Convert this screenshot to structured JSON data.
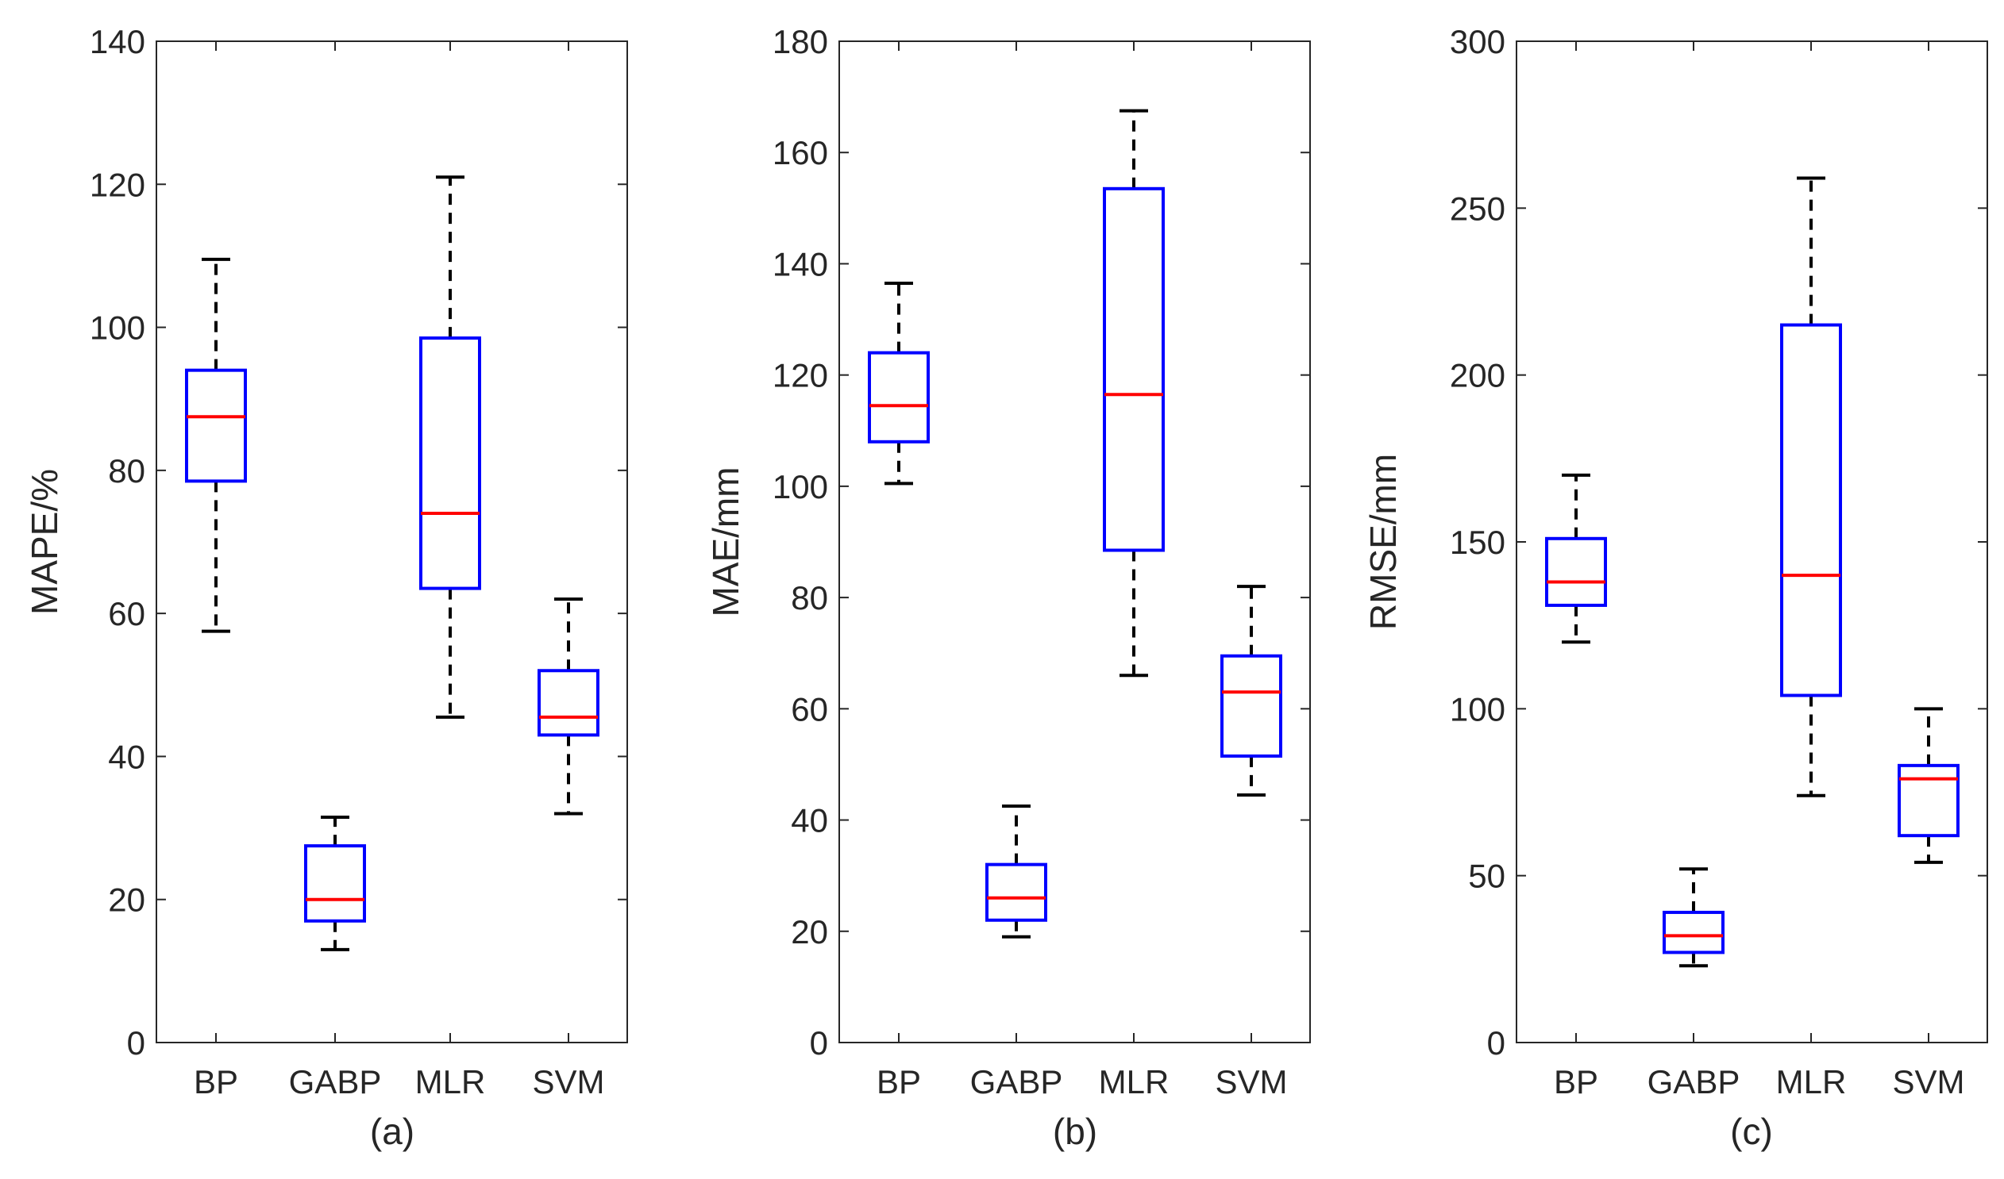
{
  "chart_data": [
    {
      "type": "boxplot",
      "panel_label": "(a)",
      "ylabel": "MAPE/%",
      "ylim": [
        0,
        140
      ],
      "yticks": [
        0,
        20,
        40,
        60,
        80,
        100,
        120,
        140
      ],
      "categories": [
        "BP",
        "GABP",
        "MLR",
        "SVM"
      ],
      "boxes": [
        {
          "name": "BP",
          "whisker_low": 57.5,
          "q1": 78.5,
          "median": 87.5,
          "q3": 94,
          "whisker_high": 109.5
        },
        {
          "name": "GABP",
          "whisker_low": 13,
          "q1": 17,
          "median": 20,
          "q3": 27.5,
          "whisker_high": 31.5
        },
        {
          "name": "MLR",
          "whisker_low": 45.5,
          "q1": 63.5,
          "median": 74,
          "q3": 98.5,
          "whisker_high": 121
        },
        {
          "name": "SVM",
          "whisker_low": 32,
          "q1": 43,
          "median": 45.5,
          "q3": 52,
          "whisker_high": 62
        }
      ]
    },
    {
      "type": "boxplot",
      "panel_label": "(b)",
      "ylabel": "MAE/mm",
      "ylim": [
        0,
        180
      ],
      "yticks": [
        0,
        20,
        40,
        60,
        80,
        100,
        120,
        140,
        160,
        180
      ],
      "categories": [
        "BP",
        "GABP",
        "MLR",
        "SVM"
      ],
      "boxes": [
        {
          "name": "BP",
          "whisker_low": 100.5,
          "q1": 108,
          "median": 114.5,
          "q3": 124,
          "whisker_high": 136.5
        },
        {
          "name": "GABP",
          "whisker_low": 19,
          "q1": 22,
          "median": 26,
          "q3": 32,
          "whisker_high": 42.5
        },
        {
          "name": "MLR",
          "whisker_low": 66,
          "q1": 88.5,
          "median": 116.5,
          "q3": 153.5,
          "whisker_high": 167.5
        },
        {
          "name": "SVM",
          "whisker_low": 44.5,
          "q1": 51.5,
          "median": 63,
          "q3": 69.5,
          "whisker_high": 82
        }
      ]
    },
    {
      "type": "boxplot",
      "panel_label": "(c)",
      "ylabel": "RMSE/mm",
      "ylim": [
        0,
        300
      ],
      "yticks": [
        0,
        50,
        100,
        150,
        200,
        250,
        300
      ],
      "categories": [
        "BP",
        "GABP",
        "MLR",
        "SVM"
      ],
      "boxes": [
        {
          "name": "BP",
          "whisker_low": 120,
          "q1": 131,
          "median": 138,
          "q3": 151,
          "whisker_high": 170
        },
        {
          "name": "GABP",
          "whisker_low": 23,
          "q1": 27,
          "median": 32,
          "q3": 39,
          "whisker_high": 52
        },
        {
          "name": "MLR",
          "whisker_low": 74,
          "q1": 104,
          "median": 140,
          "q3": 215,
          "whisker_high": 259
        },
        {
          "name": "SVM",
          "whisker_low": 54,
          "q1": 62,
          "median": 79,
          "q3": 83,
          "whisker_high": 100
        }
      ]
    }
  ]
}
